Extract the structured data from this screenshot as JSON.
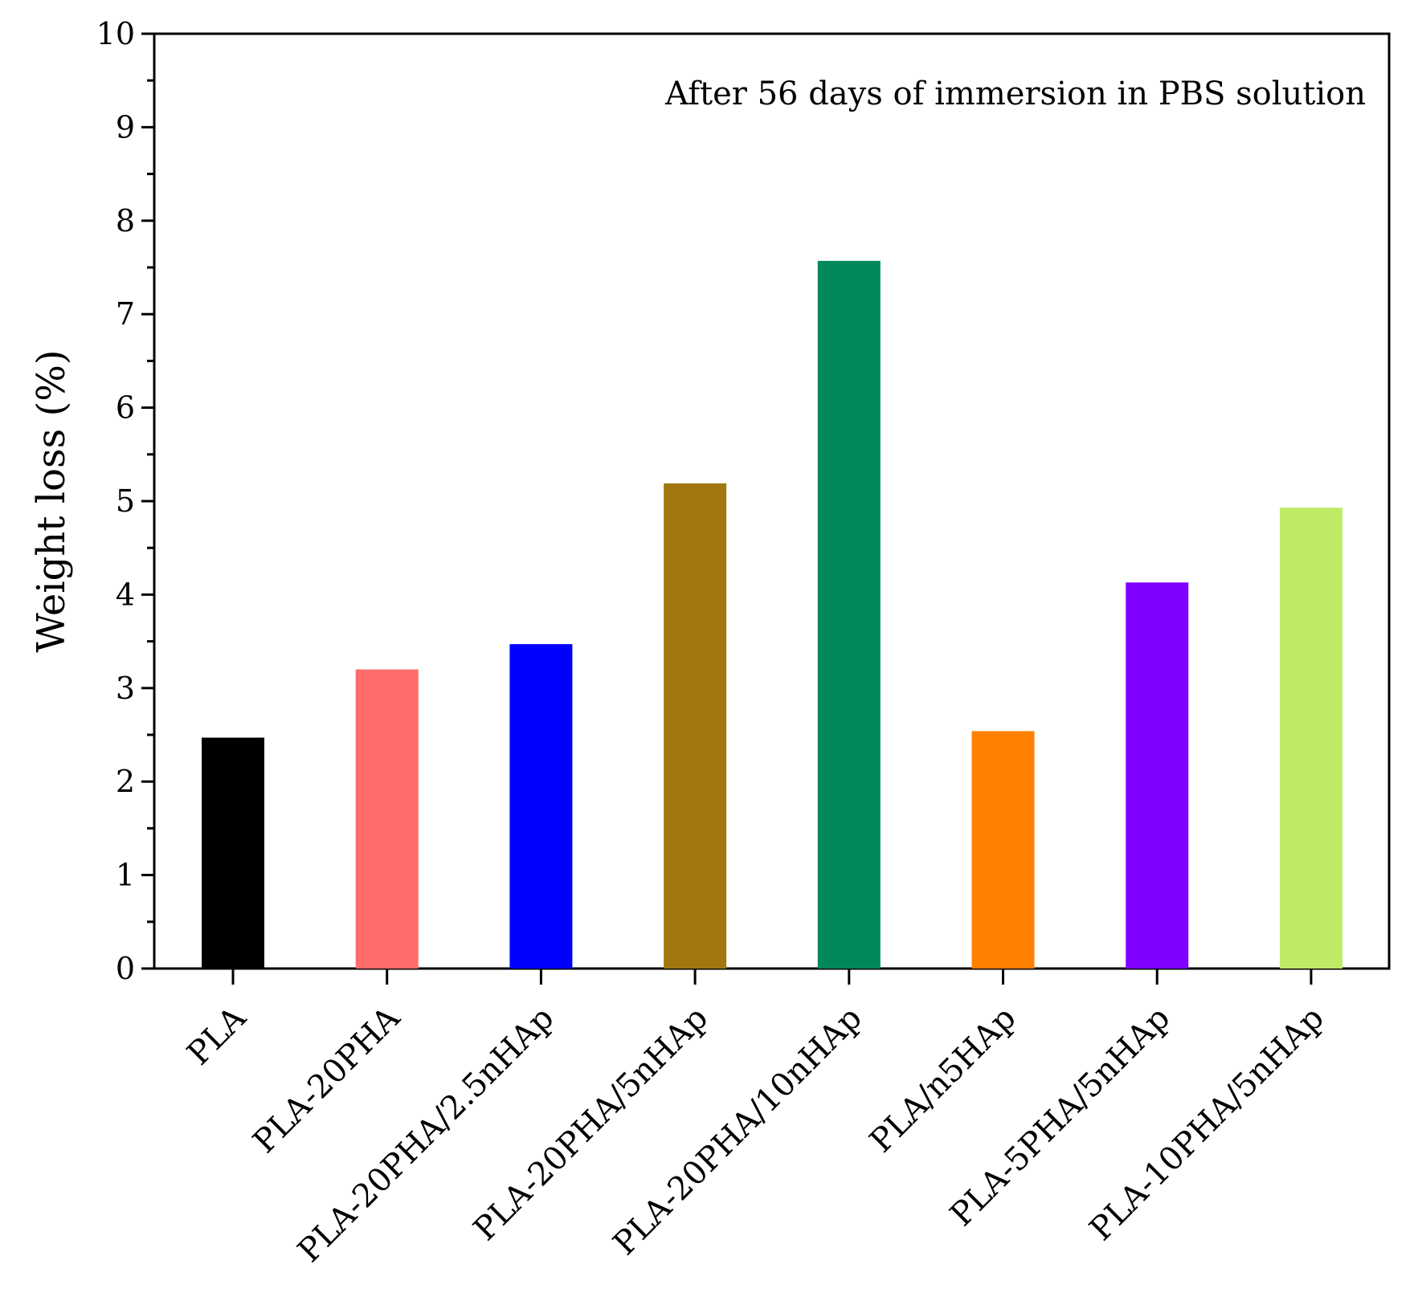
{
  "chart_data": {
    "type": "bar",
    "title": "",
    "annotation": "After 56 days of  immersion in PBS solution",
    "xlabel": "",
    "ylabel": "Weight loss (%)",
    "ylim": [
      0,
      10
    ],
    "yticks": [
      0,
      1,
      2,
      3,
      4,
      5,
      6,
      7,
      8,
      9,
      10
    ],
    "grid": false,
    "categories": [
      "PLA",
      "PLA-20PHA",
      "PLA-20PHA/2.5nHAp",
      "PLA-20PHA/5nHAp",
      "PLA-20PHA/10nHAp",
      "PLA/n5HAp",
      "PLA-5PHA/5nHAp",
      "PLA-10PHA/5nHAp"
    ],
    "values": [
      2.47,
      3.2,
      3.47,
      5.19,
      7.57,
      2.54,
      4.13,
      4.93
    ],
    "colors": [
      "#000000",
      "#ff6b6b",
      "#0000ff",
      "#a0780f",
      "#008858",
      "#ff8000",
      "#8000ff",
      "#bfea66"
    ]
  }
}
